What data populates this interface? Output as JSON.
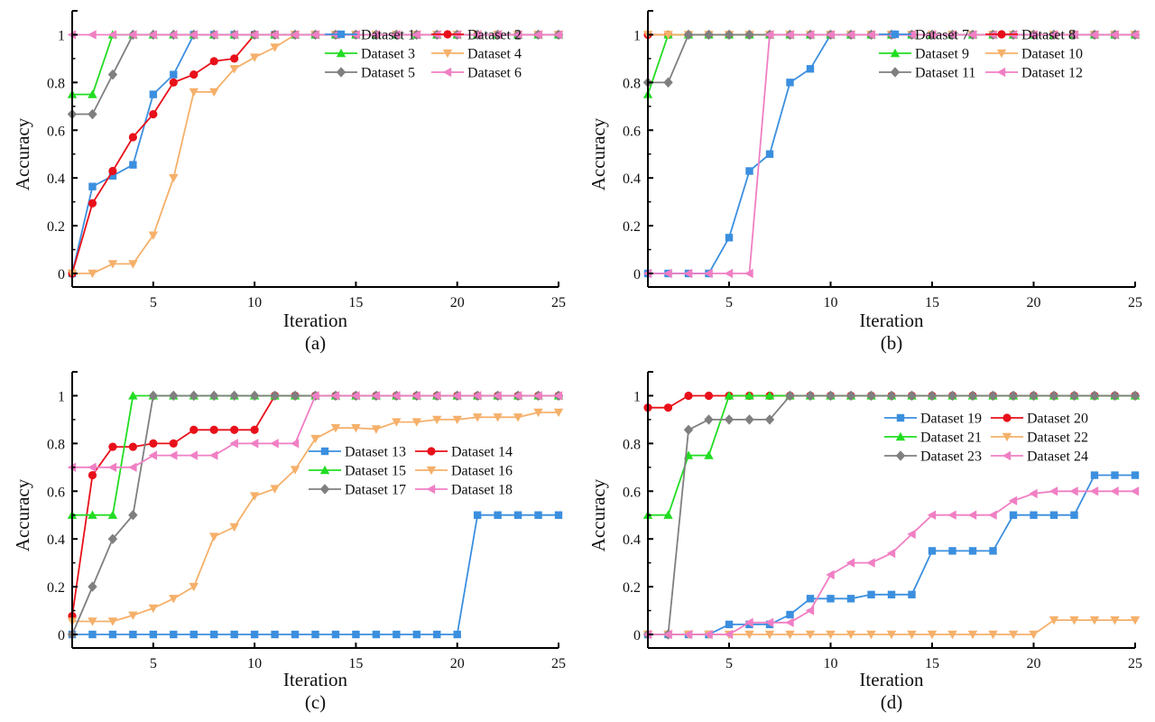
{
  "chart_data": [
    {
      "type": "line",
      "panel_label": "(a)",
      "xlabel": "Iteration",
      "ylabel": "Accuracy",
      "xlim": [
        1,
        25
      ],
      "ylim": [
        -0.06,
        1.1
      ],
      "xticks": [
        5,
        10,
        15,
        20,
        25
      ],
      "yticks": [
        0,
        0.2,
        0.4,
        0.6,
        0.8,
        1
      ],
      "ytick_labels": [
        "0",
        "0.2",
        "0.4",
        "0.6",
        "0.8",
        "1"
      ],
      "legend_position": "top-right",
      "x": [
        1,
        2,
        3,
        4,
        5,
        6,
        7,
        8,
        9,
        10,
        11,
        12,
        13,
        14,
        15,
        16,
        17,
        18,
        19,
        20,
        21,
        22,
        23,
        24,
        25
      ],
      "series": [
        {
          "name": "Dataset 1",
          "color": "#3b8fdf",
          "marker": "square",
          "values": [
            0,
            0.364,
            0.409,
            0.455,
            0.75,
            0.833,
            1,
            1,
            1,
            1,
            1,
            1,
            1,
            1,
            1,
            1,
            1,
            1,
            1,
            1,
            1,
            1,
            1,
            1,
            1
          ]
        },
        {
          "name": "Dataset 2",
          "color": "#e8101a",
          "marker": "circle",
          "values": [
            0,
            0.294,
            0.429,
            0.571,
            0.667,
            0.8,
            0.833,
            0.889,
            0.9,
            1,
            1,
            1,
            1,
            1,
            1,
            1,
            1,
            1,
            1,
            1,
            1,
            1,
            1,
            1,
            1
          ]
        },
        {
          "name": "Dataset 3",
          "color": "#22dd22",
          "marker": "triangle-up",
          "values": [
            0.75,
            0.75,
            1,
            1,
            1,
            1,
            1,
            1,
            1,
            1,
            1,
            1,
            1,
            1,
            1,
            1,
            1,
            1,
            1,
            1,
            1,
            1,
            1,
            1,
            1
          ]
        },
        {
          "name": "Dataset 4",
          "color": "#f5b06a",
          "marker": "triangle-down",
          "values": [
            0,
            0,
            0.04,
            0.04,
            0.16,
            0.4,
            0.76,
            0.76,
            0.857,
            0.905,
            0.947,
            1,
            1,
            1,
            1,
            1,
            1,
            1,
            1,
            1,
            1,
            1,
            1,
            1,
            1
          ]
        },
        {
          "name": "Dataset 5",
          "color": "#7f7f7f",
          "marker": "diamond",
          "values": [
            0.667,
            0.667,
            0.833,
            1,
            1,
            1,
            1,
            1,
            1,
            1,
            1,
            1,
            1,
            1,
            1,
            1,
            1,
            1,
            1,
            1,
            1,
            1,
            1,
            1,
            1
          ]
        },
        {
          "name": "Dataset 6",
          "color": "#f07fc4",
          "marker": "triangle-left",
          "values": [
            1,
            1,
            1,
            1,
            1,
            1,
            1,
            1,
            1,
            1,
            1,
            1,
            1,
            1,
            1,
            1,
            1,
            1,
            1,
            1,
            1,
            1,
            1,
            1,
            1
          ]
        }
      ]
    },
    {
      "type": "line",
      "panel_label": "(b)",
      "xlabel": "Iteration",
      "ylabel": "Accuracy",
      "xlim": [
        1,
        25
      ],
      "ylim": [
        -0.06,
        1.1
      ],
      "xticks": [
        5,
        10,
        15,
        20,
        25
      ],
      "yticks": [
        0,
        0.2,
        0.4,
        0.6,
        0.8,
        1
      ],
      "ytick_labels": [
        "0",
        "0.2",
        "0.4",
        "0.6",
        "0.8",
        "1"
      ],
      "legend_position": "top-right",
      "x": [
        1,
        2,
        3,
        4,
        5,
        6,
        7,
        8,
        9,
        10,
        11,
        12,
        13,
        14,
        15,
        16,
        17,
        18,
        19,
        20,
        21,
        22,
        23,
        24,
        25
      ],
      "series": [
        {
          "name": "Dataset 7",
          "color": "#3b8fdf",
          "marker": "square",
          "values": [
            0,
            0,
            0,
            0,
            0.15,
            0.429,
            0.5,
            0.8,
            0.857,
            1,
            1,
            1,
            1,
            1,
            1,
            1,
            1,
            1,
            1,
            1,
            1,
            1,
            1,
            1,
            1
          ]
        },
        {
          "name": "Dataset 8",
          "color": "#e8101a",
          "marker": "circle",
          "values": [
            1,
            1,
            1,
            1,
            1,
            1,
            1,
            1,
            1,
            1,
            1,
            1,
            1,
            1,
            1,
            1,
            1,
            1,
            1,
            1,
            1,
            1,
            1,
            1,
            1
          ]
        },
        {
          "name": "Dataset 9",
          "color": "#22dd22",
          "marker": "triangle-up",
          "values": [
            0.75,
            1,
            1,
            1,
            1,
            1,
            1,
            1,
            1,
            1,
            1,
            1,
            1,
            1,
            1,
            1,
            1,
            1,
            1,
            1,
            1,
            1,
            1,
            1,
            1
          ]
        },
        {
          "name": "Dataset 10",
          "color": "#f5b06a",
          "marker": "triangle-down",
          "values": [
            1,
            1,
            1,
            1,
            1,
            1,
            1,
            1,
            1,
            1,
            1,
            1,
            1,
            1,
            1,
            1,
            1,
            1,
            1,
            1,
            1,
            1,
            1,
            1,
            1
          ]
        },
        {
          "name": "Dataset 11",
          "color": "#7f7f7f",
          "marker": "diamond",
          "values": [
            0.8,
            0.8,
            1,
            1,
            1,
            1,
            1,
            1,
            1,
            1,
            1,
            1,
            1,
            1,
            1,
            1,
            1,
            1,
            1,
            1,
            1,
            1,
            1,
            1,
            1
          ]
        },
        {
          "name": "Dataset 12",
          "color": "#f07fc4",
          "marker": "triangle-left",
          "values": [
            0,
            0,
            0,
            0,
            0,
            0,
            1,
            1,
            1,
            1,
            1,
            1,
            1,
            1,
            1,
            1,
            1,
            1,
            1,
            1,
            1,
            1,
            1,
            1,
            1
          ]
        }
      ]
    },
    {
      "type": "line",
      "panel_label": "(c)",
      "xlabel": "Iteration",
      "ylabel": "Accuracy",
      "xlim": [
        1,
        25
      ],
      "ylim": [
        -0.06,
        1.1
      ],
      "xticks": [
        5,
        10,
        15,
        20,
        25
      ],
      "yticks": [
        0,
        0.2,
        0.4,
        0.6,
        0.8,
        1
      ],
      "ytick_labels": [
        "0",
        "0.2",
        "0.4",
        "0.6",
        "0.8",
        "1"
      ],
      "legend_position": "center-right",
      "x": [
        1,
        2,
        3,
        4,
        5,
        6,
        7,
        8,
        9,
        10,
        11,
        12,
        13,
        14,
        15,
        16,
        17,
        18,
        19,
        20,
        21,
        22,
        23,
        24,
        25
      ],
      "series": [
        {
          "name": "Dataset 13",
          "color": "#3b8fdf",
          "marker": "square",
          "values": [
            0,
            0,
            0,
            0,
            0,
            0,
            0,
            0,
            0,
            0,
            0,
            0,
            0,
            0,
            0,
            0,
            0,
            0,
            0,
            0,
            0.5,
            0.5,
            0.5,
            0.5,
            0.5
          ]
        },
        {
          "name": "Dataset 14",
          "color": "#e8101a",
          "marker": "circle",
          "values": [
            0.077,
            0.667,
            0.786,
            0.786,
            0.8,
            0.8,
            0.857,
            0.857,
            0.857,
            0.857,
            1,
            1,
            1,
            1,
            1,
            1,
            1,
            1,
            1,
            1,
            1,
            1,
            1,
            1,
            1
          ]
        },
        {
          "name": "Dataset 15",
          "color": "#22dd22",
          "marker": "triangle-up",
          "values": [
            0.5,
            0.5,
            0.5,
            1,
            1,
            1,
            1,
            1,
            1,
            1,
            1,
            1,
            1,
            1,
            1,
            1,
            1,
            1,
            1,
            1,
            1,
            1,
            1,
            1,
            1
          ]
        },
        {
          "name": "Dataset 16",
          "color": "#f5b06a",
          "marker": "triangle-down",
          "values": [
            0.055,
            0.055,
            0.055,
            0.08,
            0.11,
            0.15,
            0.2,
            0.41,
            0.45,
            0.58,
            0.61,
            0.69,
            0.82,
            0.865,
            0.865,
            0.86,
            0.89,
            0.89,
            0.9,
            0.9,
            0.91,
            0.91,
            0.91,
            0.93,
            0.93
          ]
        },
        {
          "name": "Dataset 17",
          "color": "#7f7f7f",
          "marker": "diamond",
          "values": [
            0,
            0.2,
            0.4,
            0.5,
            1,
            1,
            1,
            1,
            1,
            1,
            1,
            1,
            1,
            1,
            1,
            1,
            1,
            1,
            1,
            1,
            1,
            1,
            1,
            1,
            1
          ]
        },
        {
          "name": "Dataset 18",
          "color": "#f07fc4",
          "marker": "triangle-left",
          "values": [
            0.7,
            0.7,
            0.7,
            0.7,
            0.75,
            0.75,
            0.75,
            0.75,
            0.8,
            0.8,
            0.8,
            0.8,
            1,
            1,
            1,
            1,
            1,
            1,
            1,
            1,
            1,
            1,
            1,
            1,
            1
          ]
        }
      ]
    },
    {
      "type": "line",
      "panel_label": "(d)",
      "xlabel": "Iteration",
      "ylabel": "Accuracy",
      "xlim": [
        1,
        25
      ],
      "ylim": [
        -0.06,
        1.1
      ],
      "xticks": [
        5,
        10,
        15,
        20,
        25
      ],
      "yticks": [
        0,
        0.2,
        0.4,
        0.6,
        0.8,
        1
      ],
      "ytick_labels": [
        "0",
        "0.2",
        "0.4",
        "0.6",
        "0.8",
        "1"
      ],
      "legend_position": "top-right",
      "x": [
        1,
        2,
        3,
        4,
        5,
        6,
        7,
        8,
        9,
        10,
        11,
        12,
        13,
        14,
        15,
        16,
        17,
        18,
        19,
        20,
        21,
        22,
        23,
        24,
        25
      ],
      "series": [
        {
          "name": "Dataset 19",
          "color": "#3b8fdf",
          "marker": "square",
          "values": [
            0,
            0,
            0,
            0,
            0.042,
            0.042,
            0.042,
            0.083,
            0.15,
            0.15,
            0.15,
            0.167,
            0.167,
            0.167,
            0.35,
            0.35,
            0.35,
            0.35,
            0.5,
            0.5,
            0.5,
            0.5,
            0.667,
            0.667,
            0.667
          ]
        },
        {
          "name": "Dataset 20",
          "color": "#e8101a",
          "marker": "circle",
          "values": [
            0.95,
            0.95,
            1,
            1,
            1,
            1,
            1,
            1,
            1,
            1,
            1,
            1,
            1,
            1,
            1,
            1,
            1,
            1,
            1,
            1,
            1,
            1,
            1,
            1,
            1
          ]
        },
        {
          "name": "Dataset 21",
          "color": "#22dd22",
          "marker": "triangle-up",
          "values": [
            0.5,
            0.5,
            0.75,
            0.75,
            1,
            1,
            1,
            1,
            1,
            1,
            1,
            1,
            1,
            1,
            1,
            1,
            1,
            1,
            1,
            1,
            1,
            1,
            1,
            1,
            1
          ]
        },
        {
          "name": "Dataset 22",
          "color": "#f5b06a",
          "marker": "triangle-down",
          "values": [
            0,
            0,
            0,
            0,
            0,
            0,
            0,
            0,
            0,
            0,
            0,
            0,
            0,
            0,
            0,
            0,
            0,
            0,
            0,
            0,
            0.06,
            0.06,
            0.06,
            0.06,
            0.06
          ]
        },
        {
          "name": "Dataset 23",
          "color": "#7f7f7f",
          "marker": "diamond",
          "values": [
            0,
            0,
            0.857,
            0.9,
            0.9,
            0.9,
            0.9,
            1,
            1,
            1,
            1,
            1,
            1,
            1,
            1,
            1,
            1,
            1,
            1,
            1,
            1,
            1,
            1,
            1,
            1
          ]
        },
        {
          "name": "Dataset 24",
          "color": "#f07fc4",
          "marker": "triangle-left",
          "values": [
            0,
            0,
            0,
            0,
            0,
            0.05,
            0.05,
            0.05,
            0.1,
            0.25,
            0.3,
            0.3,
            0.34,
            0.42,
            0.5,
            0.5,
            0.5,
            0.5,
            0.56,
            0.59,
            0.6,
            0.6,
            0.6,
            0.6,
            0.6
          ]
        }
      ]
    }
  ]
}
